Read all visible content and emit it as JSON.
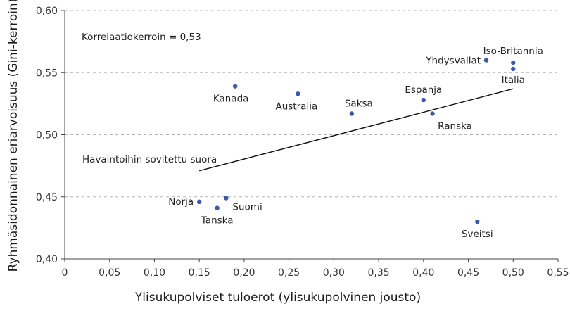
{
  "chart_data": {
    "type": "scatter",
    "xlabel": "Ylisukupolviset tuloerot (ylisukupolvinen jousto)",
    "ylabel": "Ryhmäsidonnainen eriarvoisuus (Gini-kerroin)",
    "xlim": [
      0,
      0.55
    ],
    "ylim": [
      0.4,
      0.6
    ],
    "x_ticks": [
      "0",
      "0,05",
      "0,10",
      "0,15",
      "0,20",
      "0,25",
      "0,30",
      "0,35",
      "0,40",
      "0,45",
      "0,50",
      "0,55"
    ],
    "y_ticks": [
      "0,40",
      "0,45",
      "0,50",
      "0,55",
      "0,60"
    ],
    "grid": "horizontal dashed",
    "point_color": "#3a5ba8",
    "points": [
      {
        "label": "Norja",
        "x": 0.15,
        "y": 0.446
      },
      {
        "label": "Tanska",
        "x": 0.17,
        "y": 0.441
      },
      {
        "label": "Suomi",
        "x": 0.18,
        "y": 0.449
      },
      {
        "label": "Kanada",
        "x": 0.19,
        "y": 0.539
      },
      {
        "label": "Australia",
        "x": 0.26,
        "y": 0.533
      },
      {
        "label": "Saksa",
        "x": 0.32,
        "y": 0.517
      },
      {
        "label": "Espanja",
        "x": 0.4,
        "y": 0.528
      },
      {
        "label": "Ranska",
        "x": 0.41,
        "y": 0.517
      },
      {
        "label": "Sveitsi",
        "x": 0.46,
        "y": 0.43
      },
      {
        "label": "Yhdysvallat",
        "x": 0.47,
        "y": 0.56
      },
      {
        "label": "Iso-Britannia",
        "x": 0.5,
        "y": 0.558
      },
      {
        "label": "Italia",
        "x": 0.5,
        "y": 0.553
      }
    ],
    "fit_line": {
      "x": [
        0.15,
        0.5
      ],
      "y": [
        0.471,
        0.537
      ]
    },
    "annotations": {
      "correlation": "Korrelaatiokerroin = 0,53",
      "fit_line_label": "Havaintoihin sovitettu suora"
    }
  }
}
